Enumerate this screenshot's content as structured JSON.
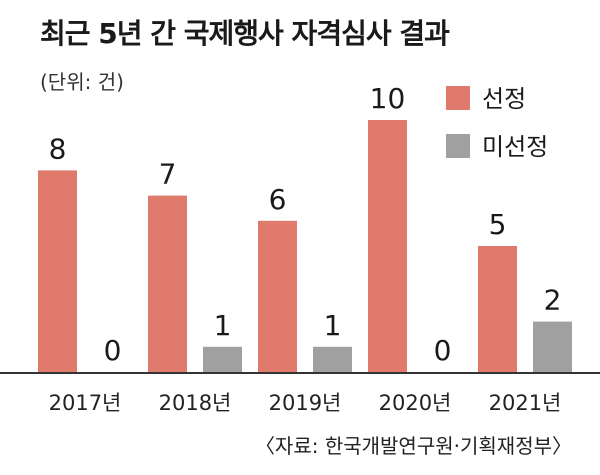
{
  "title": "최근 5년 간 국제행사 자격심사 결과",
  "unit": "(단위: 건)",
  "source": "〈자료: 한국개발연구원·기획재정부〉",
  "chart_data": {
    "type": "bar",
    "categories": [
      "2017년",
      "2018년",
      "2019년",
      "2020년",
      "2021년"
    ],
    "series": [
      {
        "name": "선정",
        "values": [
          8,
          7,
          6,
          10,
          5
        ],
        "color": "#e07a6c"
      },
      {
        "name": "미선정",
        "values": [
          0,
          1,
          1,
          0,
          2
        ],
        "color": "#a0a0a0"
      }
    ],
    "ylim": [
      0,
      10
    ],
    "grid": false,
    "legend_position": "top-right"
  }
}
